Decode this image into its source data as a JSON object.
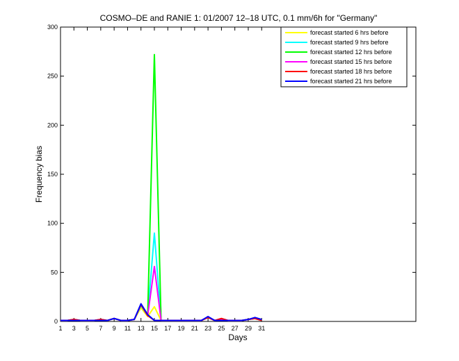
{
  "chart_data": {
    "type": "line",
    "title": "COSMO–DE and RANIE 1: 01/2007 12–18 UTC, 0.1 mm/6h for \"Germany\"",
    "xlabel": "Days",
    "ylabel": "Frequency bias",
    "xlim": [
      1,
      54
    ],
    "ylim": [
      0,
      300
    ],
    "xticks": [
      1,
      3,
      5,
      7,
      9,
      11,
      13,
      15,
      17,
      19,
      21,
      23,
      25,
      27,
      29,
      31
    ],
    "yticks": [
      0,
      50,
      100,
      150,
      200,
      250,
      300
    ],
    "grid": false,
    "legend_position": "top-right",
    "x": [
      1,
      2,
      3,
      4,
      5,
      6,
      7,
      8,
      9,
      10,
      11,
      12,
      13,
      14,
      15,
      16,
      17,
      18,
      19,
      20,
      21,
      22,
      23,
      24,
      25,
      26,
      27,
      28,
      29,
      30,
      31
    ],
    "series": [
      {
        "name": "forecast started 6 hrs before",
        "color": "#ffff00",
        "values": [
          1,
          1,
          2,
          1,
          1,
          1,
          2,
          1,
          3,
          1,
          1,
          2,
          14,
          5,
          15,
          1,
          1,
          1,
          1,
          1,
          1,
          1,
          4,
          1,
          2,
          1,
          1,
          1,
          2,
          3,
          1
        ]
      },
      {
        "name": "forecast started 9 hrs before",
        "color": "#00ffff",
        "values": [
          1,
          1,
          2,
          1,
          1,
          1,
          2,
          1,
          3,
          1,
          1,
          2,
          16,
          6,
          90,
          1,
          1,
          1,
          1,
          1,
          1,
          1,
          4,
          1,
          2,
          1,
          1,
          1,
          2,
          3,
          1
        ]
      },
      {
        "name": "forecast started 12 hrs before",
        "color": "#00ff00",
        "values": [
          1,
          1,
          2,
          1,
          1,
          1,
          2,
          1,
          3,
          1,
          1,
          2,
          17,
          6,
          272,
          1,
          1,
          1,
          1,
          1,
          1,
          1,
          4,
          1,
          2,
          1,
          1,
          1,
          2,
          3,
          1
        ]
      },
      {
        "name": "forecast started 15 hrs before",
        "color": "#ff00ff",
        "values": [
          1,
          1,
          2,
          1,
          1,
          1,
          2,
          1,
          3,
          1,
          1,
          2,
          17,
          6,
          56,
          1,
          1,
          1,
          1,
          1,
          1,
          1,
          4,
          1,
          2,
          1,
          1,
          1,
          2,
          3,
          1
        ]
      },
      {
        "name": "forecast started 18 hrs before",
        "color": "#ff0000",
        "values": [
          1,
          1,
          2,
          1,
          1,
          1,
          2,
          1,
          3,
          1,
          1,
          2,
          17,
          6,
          1,
          1,
          1,
          1,
          1,
          1,
          1,
          1,
          4,
          1,
          3,
          1,
          1,
          1,
          2,
          3,
          1
        ]
      },
      {
        "name": "forecast started 21 hrs before",
        "color": "#0000ff",
        "values": [
          1,
          1,
          1,
          1,
          1,
          1,
          1,
          1,
          3,
          1,
          1,
          2,
          18,
          7,
          1,
          1,
          1,
          1,
          1,
          1,
          1,
          1,
          5,
          1,
          1,
          1,
          1,
          1,
          2,
          4,
          2
        ]
      }
    ]
  }
}
